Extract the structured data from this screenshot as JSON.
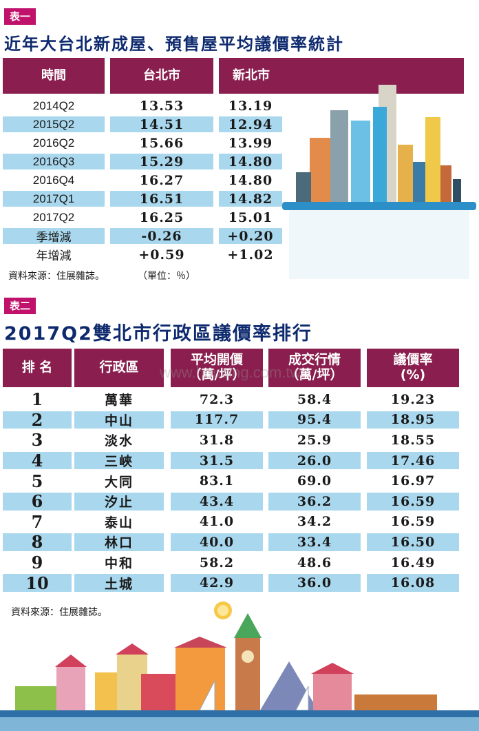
{
  "table1": {
    "tag": "表一",
    "title": "近年大台北新成屋、預售屋平均議價率統計",
    "headers": [
      "時間",
      "台北市",
      "新北市"
    ],
    "rows": [
      {
        "period": "2014Q2",
        "taipei": "13.53",
        "newtaipei": "13.19"
      },
      {
        "period": "2015Q2",
        "taipei": "14.51",
        "newtaipei": "12.94"
      },
      {
        "period": "2016Q2",
        "taipei": "15.66",
        "newtaipei": "13.99"
      },
      {
        "period": "2016Q3",
        "taipei": "15.29",
        "newtaipei": "14.80"
      },
      {
        "period": "2016Q4",
        "taipei": "16.27",
        "newtaipei": "14.80"
      },
      {
        "period": "2017Q1",
        "taipei": "16.51",
        "newtaipei": "14.82"
      },
      {
        "period": "2017Q2",
        "taipei": "16.25",
        "newtaipei": "15.01"
      },
      {
        "period": "季增減",
        "taipei": "-0.26",
        "newtaipei": "+0.20"
      },
      {
        "period": "年增減",
        "taipei": "+0.59",
        "newtaipei": "+1.02"
      }
    ],
    "source": "資料來源：住展雜誌。",
    "unit": "（單位：％）"
  },
  "table2": {
    "tag": "表二",
    "title": "2017Q2雙北市行政區議價率排行",
    "headers": [
      "排 名",
      "行政區",
      "平均開價\n（萬/坪）",
      "成交行情\n（萬/坪）",
      "議價率\n(%)"
    ],
    "rows": [
      {
        "rank": "1",
        "district": "萬華",
        "ask": "72.3",
        "deal": "58.4",
        "rate": "19.23"
      },
      {
        "rank": "2",
        "district": "中山",
        "ask": "117.7",
        "deal": "95.4",
        "rate": "18.95"
      },
      {
        "rank": "3",
        "district": "淡水",
        "ask": "31.8",
        "deal": "25.9",
        "rate": "18.55"
      },
      {
        "rank": "4",
        "district": "三峽",
        "ask": "31.5",
        "deal": "26.0",
        "rate": "17.46"
      },
      {
        "rank": "5",
        "district": "大同",
        "ask": "83.1",
        "deal": "69.0",
        "rate": "16.97"
      },
      {
        "rank": "6",
        "district": "汐止",
        "ask": "43.4",
        "deal": "36.2",
        "rate": "16.59"
      },
      {
        "rank": "7",
        "district": "泰山",
        "ask": "41.0",
        "deal": "34.2",
        "rate": "16.59"
      },
      {
        "rank": "8",
        "district": "林口",
        "ask": "40.0",
        "deal": "33.4",
        "rate": "16.50"
      },
      {
        "rank": "9",
        "district": "中和",
        "ask": "58.2",
        "deal": "48.6",
        "rate": "16.49"
      },
      {
        "rank": "10",
        "district": "土城",
        "ask": "42.9",
        "deal": "36.0",
        "rate": "16.08"
      }
    ],
    "source": "資料來源：住展雜誌。"
  },
  "watermark": "www.housing.com.tw",
  "colors": {
    "accent": "#c0126b",
    "header": "#8a1f4f",
    "title": "#0e2a6e",
    "band": "#a9d8ee"
  }
}
